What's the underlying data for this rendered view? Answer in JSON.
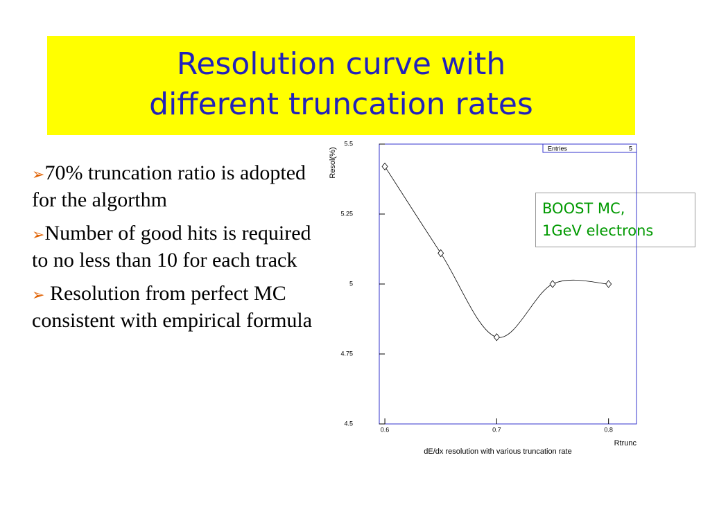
{
  "title_lines": [
    "Resolution curve with",
    "different truncation rates"
  ],
  "bullets": [
    "70% truncation ratio is adopted for the algorthm",
    "Number of good hits is required to no less than 10 for each track",
    " Resolution from perfect MC consistent with empirical formula"
  ],
  "note_lines": [
    "BOOST MC,",
    "1GeV electrons"
  ],
  "chart_data": {
    "type": "line",
    "title": "dE/dx resolution with various truncation rate",
    "x_label": "Rtrunc",
    "y_label": "Resol(%)",
    "stats": {
      "label": "Entries",
      "value": 5
    },
    "x": [
      0.6,
      0.65,
      0.7,
      0.75,
      0.8
    ],
    "series": [
      {
        "name": "resolution",
        "color": "#000000",
        "values": [
          5.42,
          5.11,
          4.81,
          5.0,
          5.0
        ]
      }
    ],
    "xlim": [
      0.595,
      0.825
    ],
    "xticks": [
      0.6,
      0.7,
      0.8
    ],
    "ylim": [
      4.5,
      5.5
    ],
    "yticks": [
      4.5,
      4.75,
      5,
      5.25,
      5.5
    ],
    "frame_color": "#3333cc"
  }
}
